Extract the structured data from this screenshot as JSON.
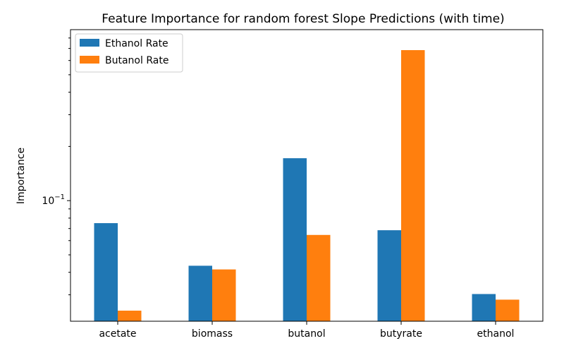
{
  "chart_data": {
    "type": "bar",
    "title": "Feature Importance for random forest Slope Predictions (with time)",
    "xlabel": "",
    "ylabel": "Importance",
    "yscale": "log",
    "ylim": [
      0.0214,
      0.89
    ],
    "y_tick_labels": [
      {
        "value": 0.1,
        "base": "10",
        "exp": "−1"
      }
    ],
    "categories": [
      "acetate",
      "biomass",
      "butanol",
      "butyrate",
      "ethanol"
    ],
    "series": [
      {
        "name": "Ethanol Rate",
        "color": "#1f77b4",
        "values": [
          0.075,
          0.0435,
          0.172,
          0.0685,
          0.0303
        ]
      },
      {
        "name": "Butanol Rate",
        "color": "#ff7f0e",
        "values": [
          0.0245,
          0.0415,
          0.0645,
          0.685,
          0.0282
        ]
      }
    ],
    "legend": "top-left",
    "grid": false
  }
}
